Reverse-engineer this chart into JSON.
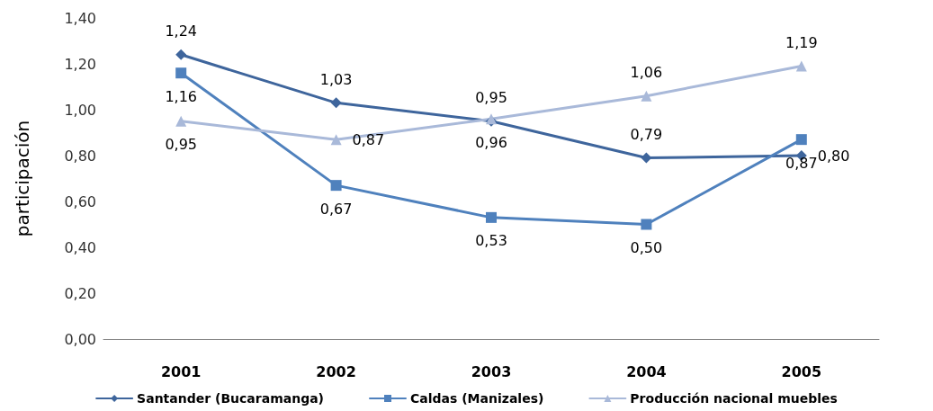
{
  "chart_data": {
    "type": "line",
    "ylabel": "participación",
    "categories": [
      "2001",
      "2002",
      "2003",
      "2004",
      "2005"
    ],
    "series": [
      {
        "name": "Santander (Bucaramanga)",
        "color": "#3e659c",
        "marker": "diamond",
        "values": [
          1.24,
          1.03,
          0.95,
          0.79,
          0.8
        ],
        "value_labels": [
          "1,24",
          "1,03",
          "0,95",
          "0,79",
          "0,80"
        ]
      },
      {
        "name": "Caldas (Manizales)",
        "color": "#4f81bd",
        "marker": "square",
        "values": [
          1.16,
          0.67,
          0.53,
          0.5,
          0.87
        ],
        "value_labels": [
          "1,16",
          "0,67",
          "0,53",
          "0,50",
          "0,87"
        ]
      },
      {
        "name": "Producción nacional muebles",
        "color": "#a9b9d9",
        "marker": "triangle",
        "values": [
          0.95,
          0.87,
          0.96,
          1.06,
          1.19
        ],
        "value_labels": [
          "0,95",
          "0,87",
          "0,96",
          "1,06",
          "1,19"
        ]
      }
    ],
    "ylim": [
      0,
      1.4
    ],
    "yticks": [
      {
        "value": 0,
        "label": "0,00"
      },
      {
        "value": 0.2,
        "label": "0,20"
      },
      {
        "value": 0.4,
        "label": "0,40"
      },
      {
        "value": 0.6,
        "label": "0,60"
      },
      {
        "value": 0.8,
        "label": "0,80"
      },
      {
        "value": 1.0,
        "label": "1,00"
      },
      {
        "value": 1.2,
        "label": "1,20"
      },
      {
        "value": 1.4,
        "label": "1,40"
      }
    ],
    "grid": false,
    "legend": "bottom",
    "line_style": "solid"
  }
}
